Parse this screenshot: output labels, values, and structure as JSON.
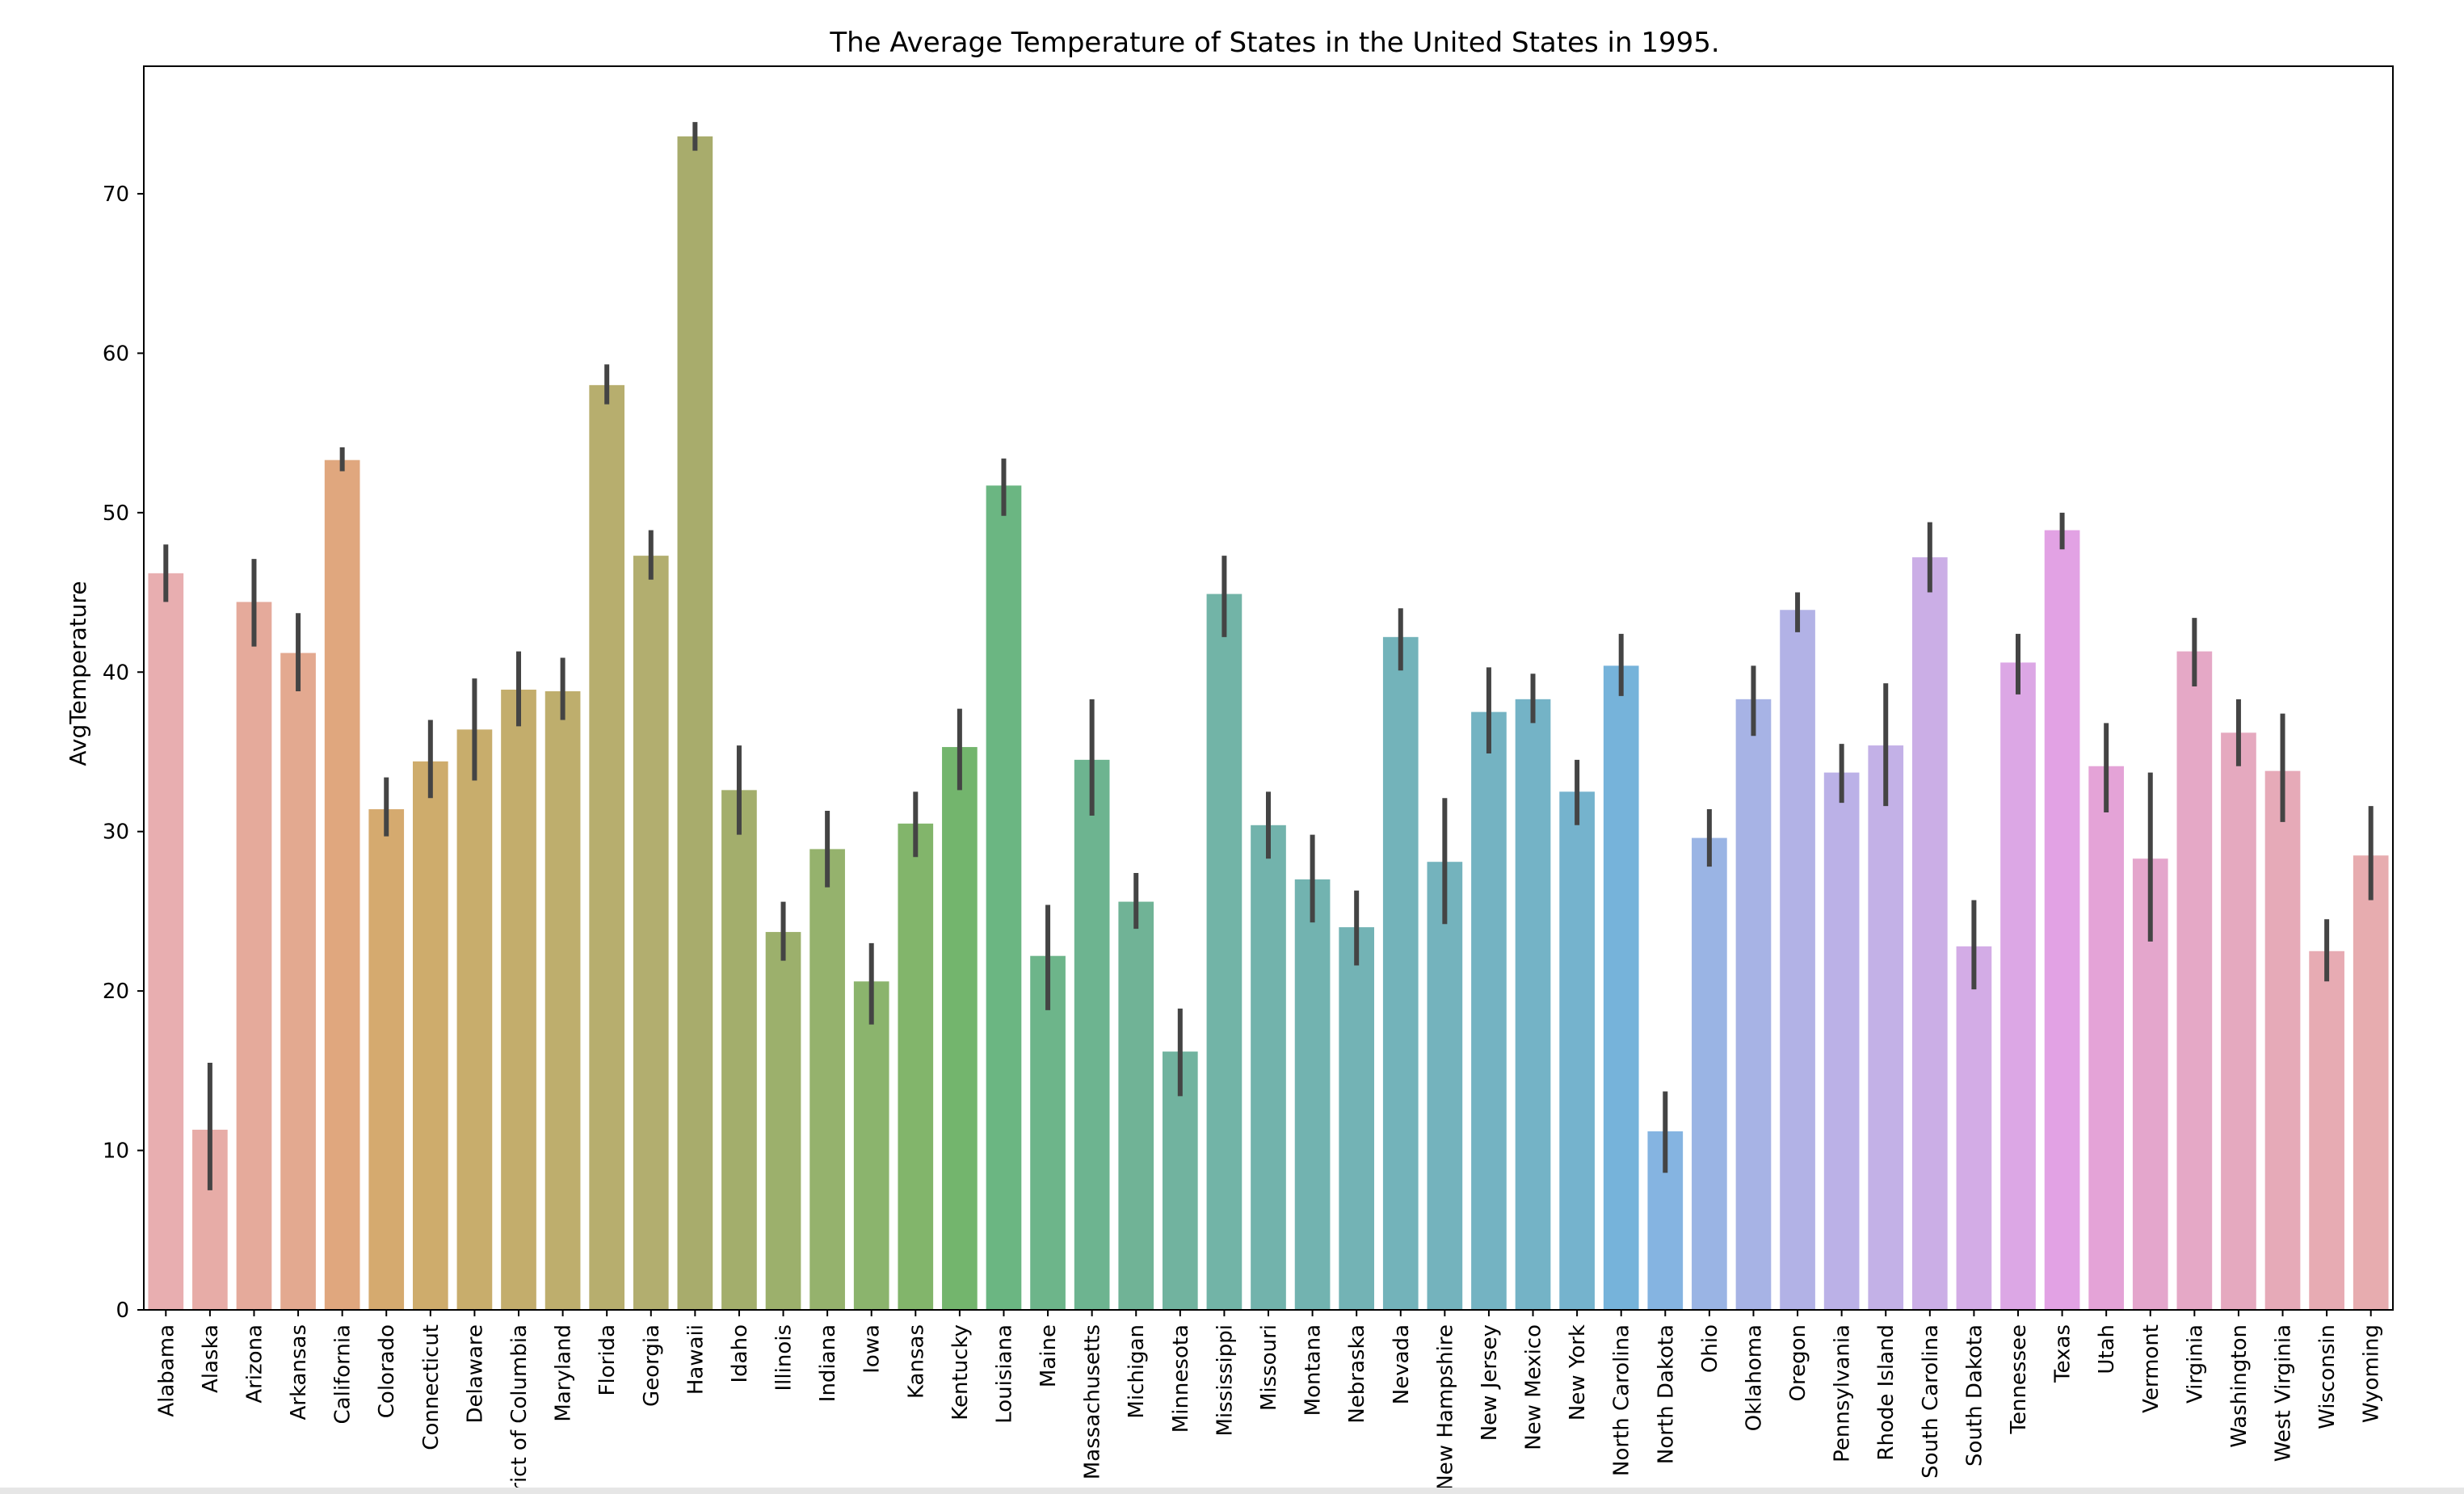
{
  "chart_data": {
    "type": "bar",
    "title": "The Average Temperature of States in the United States in 1995.",
    "xlabel": "",
    "ylabel": "AvgTemperature",
    "ylim": [
      0,
      78
    ],
    "yticks": [
      0,
      10,
      20,
      30,
      40,
      50,
      60,
      70
    ],
    "grid": false,
    "categories": [
      "Alabama",
      "Alaska",
      "Arizona",
      "Arkansas",
      "California",
      "Colorado",
      "Connecticut",
      "Delaware",
      "District of Columbia",
      "Maryland",
      "Florida",
      "Georgia",
      "Hawaii",
      "Idaho",
      "Illinois",
      "Indiana",
      "Iowa",
      "Kansas",
      "Kentucky",
      "Louisiana",
      "Maine",
      "Massachusetts",
      "Michigan",
      "Minnesota",
      "Mississippi",
      "Missouri",
      "Montana",
      "Nebraska",
      "Nevada",
      "New Hampshire",
      "New Jersey",
      "New Mexico",
      "New York",
      "North Carolina",
      "North Dakota",
      "Ohio",
      "Oklahoma",
      "Oregon",
      "Pennsylvania",
      "Rhode Island",
      "South Carolina",
      "South Dakota",
      "Tennessee",
      "Texas",
      "Utah",
      "Vermont",
      "Virginia",
      "Washington",
      "West Virginia",
      "Wisconsin",
      "Wyoming"
    ],
    "values": [
      46.2,
      11.3,
      44.4,
      41.2,
      53.3,
      31.4,
      34.4,
      36.4,
      38.9,
      38.8,
      58.0,
      47.3,
      73.6,
      32.6,
      23.7,
      28.9,
      20.6,
      30.5,
      35.3,
      51.7,
      22.2,
      34.5,
      25.6,
      16.2,
      44.9,
      30.4,
      27.0,
      24.0,
      42.2,
      28.1,
      37.5,
      38.3,
      32.5,
      40.4,
      11.2,
      29.6,
      38.3,
      43.9,
      33.7,
      35.4,
      47.2,
      22.8,
      40.6,
      48.9,
      34.1,
      28.3,
      41.3,
      36.2,
      33.8,
      22.5,
      28.5
    ],
    "error_low": [
      44.4,
      7.5,
      41.6,
      38.8,
      52.6,
      29.7,
      32.1,
      33.2,
      36.6,
      37.0,
      56.8,
      45.8,
      72.7,
      29.8,
      21.9,
      26.5,
      17.9,
      28.4,
      32.6,
      49.8,
      18.8,
      31.0,
      23.9,
      13.4,
      42.2,
      28.3,
      24.3,
      21.6,
      40.1,
      24.2,
      34.9,
      36.8,
      30.4,
      38.5,
      8.6,
      27.8,
      36.0,
      42.5,
      31.8,
      31.6,
      45.0,
      20.1,
      38.6,
      47.7,
      31.2,
      23.1,
      39.1,
      34.1,
      30.6,
      20.6,
      25.7
    ],
    "error_high": [
      48.0,
      15.5,
      47.1,
      43.7,
      54.1,
      33.4,
      37.0,
      39.6,
      41.3,
      40.9,
      59.3,
      48.9,
      74.5,
      35.4,
      25.6,
      31.3,
      23.0,
      32.5,
      37.7,
      53.4,
      25.4,
      38.3,
      27.4,
      18.9,
      47.3,
      32.5,
      29.8,
      26.3,
      44.0,
      32.1,
      40.3,
      39.9,
      34.5,
      42.4,
      13.7,
      31.4,
      40.4,
      45.0,
      35.5,
      39.3,
      49.4,
      25.7,
      42.4,
      50.0,
      36.8,
      33.7,
      43.4,
      38.3,
      37.4,
      24.5,
      31.6
    ],
    "colors": [
      "#e8aeb0",
      "#e7aca7",
      "#e5aa9b",
      "#e3a990",
      "#e0a77e",
      "#d5aa6f",
      "#ceac6c",
      "#c8ad6c",
      "#c3ad6c",
      "#beae6d",
      "#b7ae6e",
      "#b2ae6f",
      "#a8ac6c",
      "#a3ae6c",
      "#9cb06c",
      "#95b26d",
      "#8bb46d",
      "#82b56b",
      "#73b56d",
      "#6bb682",
      "#6db58a",
      "#6db490",
      "#70b396",
      "#71b39f",
      "#72b4a7",
      "#72b3ac",
      "#72b3b0",
      "#73b3b5",
      "#73b3ba",
      "#74b3bd",
      "#74b3c2",
      "#74b3c6",
      "#75b3cd",
      "#76b3da",
      "#85b4e1",
      "#9ab4e4",
      "#a7b3e5",
      "#b2b2e6",
      "#bbb1e7",
      "#c3b1e7",
      "#cbaee6",
      "#d3ace6",
      "#dca7e5",
      "#e2a2e4",
      "#e4a3d7",
      "#e4a6cc",
      "#e5a8c6",
      "#e5a9bf",
      "#e6aab8",
      "#e7abb3",
      "#e7acaf"
    ],
    "error_color": "#444444",
    "legend": "none"
  }
}
